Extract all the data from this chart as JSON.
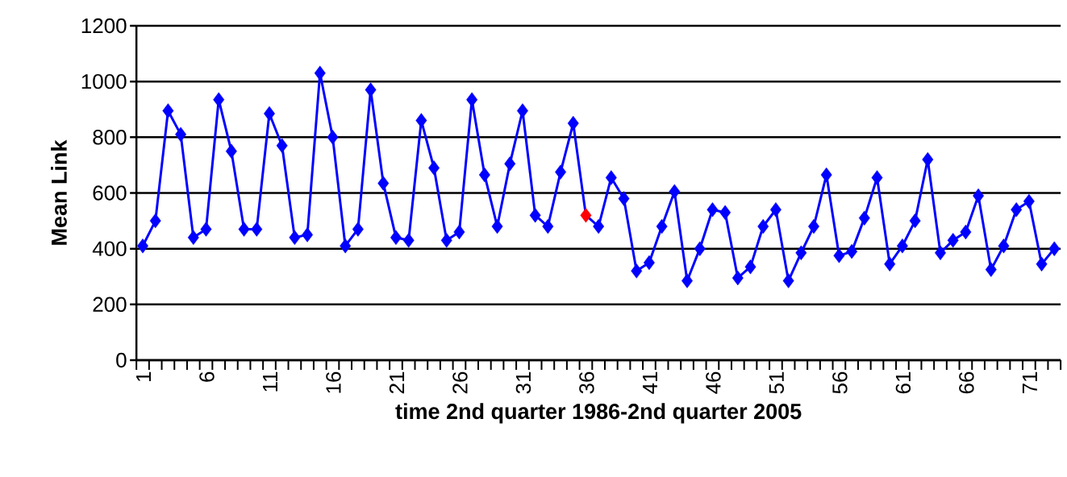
{
  "chart_data": {
    "type": "line",
    "xlabel": "time 2nd quarter 1986-2nd quarter 2005",
    "ylabel": "Mean Link",
    "categories": [
      "1",
      null,
      null,
      null,
      null,
      "6",
      null,
      null,
      null,
      null,
      "11",
      null,
      null,
      null,
      null,
      "16",
      null,
      null,
      null,
      null,
      "21",
      null,
      null,
      null,
      null,
      "26",
      null,
      null,
      null,
      null,
      "31",
      null,
      null,
      null,
      null,
      "36",
      null,
      null,
      null,
      null,
      "41",
      null,
      null,
      null,
      null,
      "46",
      null,
      null,
      null,
      null,
      "51",
      null,
      null,
      null,
      null,
      "56",
      null,
      null,
      null,
      null,
      "61",
      null,
      null,
      null,
      null,
      "66",
      null,
      null,
      null,
      null,
      "71",
      null,
      null
    ],
    "series": [
      {
        "color": "#0000ff",
        "values": [
          410,
          500,
          895,
          810,
          440,
          470,
          935,
          750,
          470,
          470,
          885,
          770,
          440,
          450,
          1030,
          800,
          410,
          470,
          970,
          635,
          440,
          430,
          860,
          690,
          430,
          460,
          935,
          665,
          480,
          705,
          895,
          520,
          480,
          675,
          850,
          520,
          480,
          655,
          580,
          320,
          350,
          480,
          605,
          285,
          400,
          540,
          530,
          295,
          335,
          480,
          540,
          285,
          385,
          480,
          665,
          375,
          390,
          510,
          655,
          345,
          410,
          500,
          720,
          385,
          430,
          460,
          590,
          325,
          410,
          540,
          570,
          345,
          400
        ],
        "colors": [
          "#0000ff",
          "#0000ff",
          "#0000ff",
          "#0000ff",
          "#0000ff",
          "#0000ff",
          "#0000ff",
          "#0000ff",
          "#0000ff",
          "#0000ff",
          "#0000ff",
          "#0000ff",
          "#0000ff",
          "#0000ff",
          "#0000ff",
          "#0000ff",
          "#0000ff",
          "#0000ff",
          "#0000ff",
          "#0000ff",
          "#0000ff",
          "#0000ff",
          "#0000ff",
          "#0000ff",
          "#0000ff",
          "#0000ff",
          "#0000ff",
          "#0000ff",
          "#0000ff",
          "#0000ff",
          "#0000ff",
          "#0000ff",
          "#0000ff",
          "#0000ff",
          "#0000ff",
          "#ff0000",
          "#0000ff",
          "#0000ff",
          "#0000ff",
          "#0000ff",
          "#0000ff",
          "#0000ff",
          "#0000ff",
          "#0000ff",
          "#0000ff",
          "#0000ff",
          "#0000ff",
          "#0000ff",
          "#0000ff",
          "#0000ff",
          "#0000ff",
          "#0000ff",
          "#0000ff",
          "#0000ff",
          "#0000ff",
          "#0000ff",
          "#0000ff",
          "#0000ff",
          "#0000ff",
          "#0000ff",
          "#0000ff",
          "#0000ff",
          "#0000ff",
          "#0000ff",
          "#0000ff",
          "#0000ff",
          "#0000ff",
          "#0000ff",
          "#0000ff",
          "#0000ff",
          "#0000ff",
          "#0000ff",
          "#0000ff"
        ]
      }
    ],
    "ylim": [
      0,
      1200
    ],
    "yticks": [
      0,
      200,
      400,
      600,
      800,
      1000,
      1200
    ],
    "grid": "y",
    "marker": "diamond",
    "line_style": "solid"
  }
}
